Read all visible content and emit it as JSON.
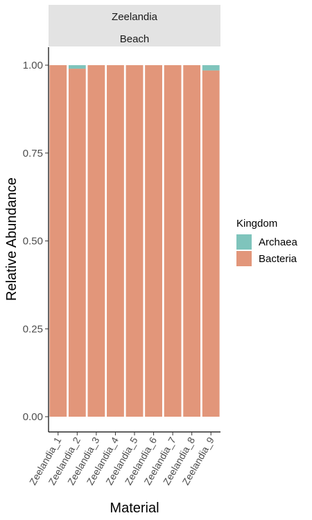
{
  "chart_data": {
    "type": "bar",
    "stacked": true,
    "facet": {
      "strip": [
        "Zeelandia",
        "Beach"
      ]
    },
    "categories": [
      "Zeelandia_1",
      "Zeelandia_2",
      "Zeelandia_3",
      "Zeelandia_4",
      "Zeelandia_5",
      "Zeelandia_6",
      "Zeelandia_7",
      "Zeelandia_8",
      "Zeelandia_9"
    ],
    "series": [
      {
        "name": "Bacteria",
        "color": "#e2967a",
        "values": [
          1.0,
          0.99,
          1.0,
          1.0,
          1.0,
          1.0,
          1.0,
          1.0,
          0.985
        ]
      },
      {
        "name": "Archaea",
        "color": "#7fc4bc",
        "values": [
          0.0,
          0.01,
          0.0,
          0.0,
          0.0,
          0.0,
          0.0,
          0.0,
          0.015
        ]
      }
    ],
    "xlabel": "Material",
    "ylabel": "Relative Abundance",
    "ylim": [
      0,
      1
    ],
    "yticks": [
      "0.00",
      "0.25",
      "0.50",
      "0.75",
      "1.00"
    ],
    "legend": {
      "title": "Kingdom",
      "position": "right",
      "items": [
        "Archaea",
        "Bacteria"
      ]
    },
    "grid": false
  }
}
